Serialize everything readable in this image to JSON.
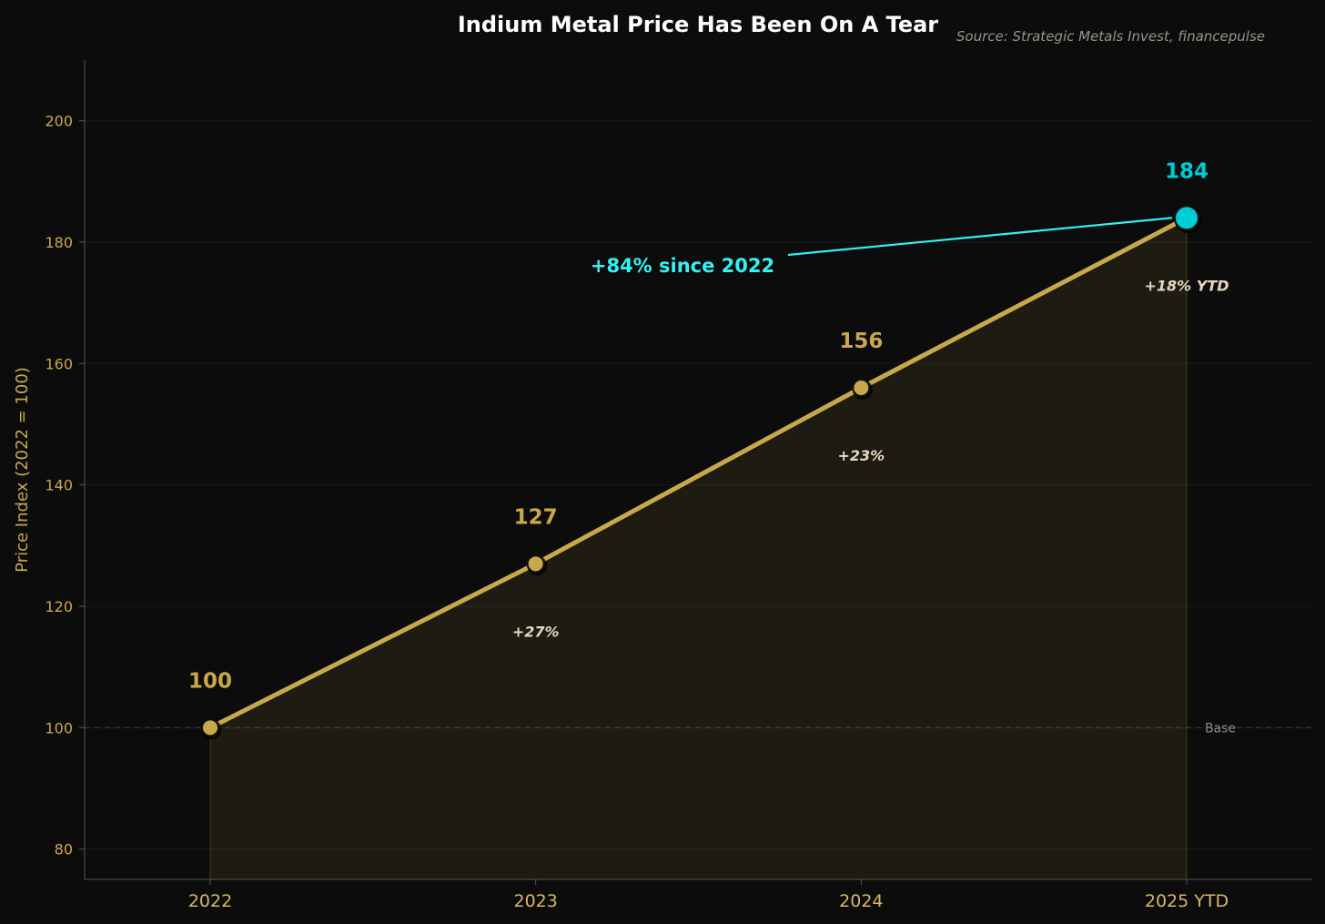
{
  "chart_data": {
    "type": "line",
    "title": "Indium Metal Price Has Been On A Tear",
    "source": "Source: Strategic Metals Invest, financepulse",
    "ylabel": "Price Index (2022 = 100)",
    "xlabel": "",
    "categories": [
      "2022",
      "2023",
      "2024",
      "2025 YTD"
    ],
    "values": [
      100,
      127,
      156,
      184
    ],
    "value_labels": [
      "100",
      "127",
      "156",
      "184"
    ],
    "pct_changes": [
      "",
      "+27%",
      "+23%",
      "+18% YTD"
    ],
    "ylim": [
      75,
      210
    ],
    "yticks": [
      80,
      100,
      120,
      140,
      160,
      180,
      200
    ],
    "baseline": {
      "value": 100,
      "label": "Base"
    },
    "callout": {
      "text": "+84% since 2022",
      "target_index": 3
    },
    "grid": true,
    "colors": {
      "line": "#c9a84c",
      "highlight": "#00ccd6",
      "callout": "#33f2f2",
      "axis": "#555555",
      "grid": "#1a1a1a"
    }
  }
}
